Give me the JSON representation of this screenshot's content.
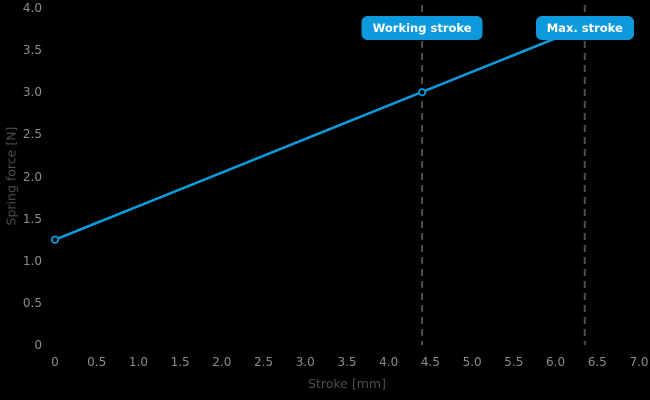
{
  "chart_data": {
    "type": "line",
    "title": "",
    "xlabel": "Stroke [mm]",
    "ylabel": "Spring force [N]",
    "xlim": [
      0,
      7.0
    ],
    "ylim": [
      0,
      4.0
    ],
    "grid": false,
    "legend": "none",
    "xticks": {
      "values": [
        0,
        0.5,
        1.0,
        1.5,
        2.0,
        2.5,
        3.0,
        3.5,
        4.0,
        4.5,
        5.0,
        5.5,
        6.0,
        6.5,
        7.0
      ],
      "labels": [
        "0",
        "0.5",
        "1.0",
        "1.5",
        "2.0",
        "2.5",
        "3.0",
        "3.5",
        "4.0",
        "4.5",
        "5.0",
        "5.5",
        "6.0",
        "6.5",
        "7.0"
      ]
    },
    "yticks": {
      "values": [
        0,
        0.5,
        1.0,
        1.5,
        2.0,
        2.5,
        3.0,
        3.5,
        4.0
      ],
      "labels": [
        "0",
        "0.5",
        "1.0",
        "1.5",
        "2.0",
        "2.5",
        "3.0",
        "3.5",
        "4.0"
      ]
    },
    "colors": {
      "background": "#000000",
      "line": "#0d9ad8",
      "marker_fill": "#000000",
      "tick_label": "#8c8c8c",
      "axis_title": "#4d4d4d",
      "dashed_line": "#4d4d4d",
      "annotation_bg": "#0d9add",
      "annotation_text": "#ffffff"
    },
    "series": [
      {
        "name": "spring-force-line",
        "color": "#0d9ad8",
        "points": [
          {
            "x": 0,
            "y": 1.25
          },
          {
            "x": 6.35,
            "y": 3.78
          }
        ],
        "markers": [
          {
            "x": 0,
            "y": 1.25
          },
          {
            "x": 4.4,
            "y": 3.0
          }
        ]
      }
    ],
    "annotations": [
      {
        "id": "working-stroke",
        "label": "Working stroke",
        "x": 4.4
      },
      {
        "id": "max-stroke",
        "label": "Max. stroke",
        "x": 6.35
      }
    ]
  }
}
